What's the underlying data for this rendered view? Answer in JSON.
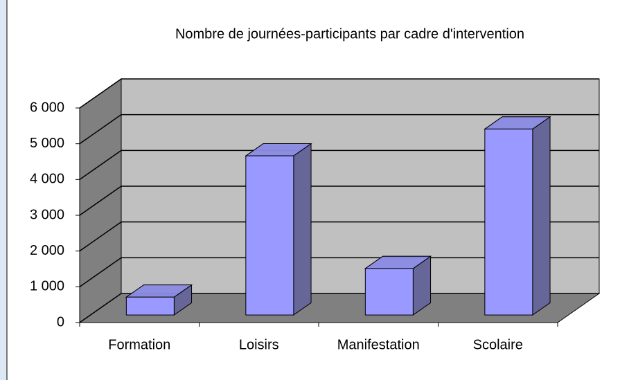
{
  "chart_data": {
    "type": "bar3d",
    "title": "Nombre de journées-participants par cadre d'intervention",
    "categories": [
      "Formation",
      "Loisirs",
      "Manifestation",
      "Scolaire"
    ],
    "values": [
      500,
      4450,
      1300,
      5200
    ],
    "color": "#9999ff",
    "side_color": "#666699",
    "ylim": [
      0,
      6000
    ],
    "yticks": [
      0,
      {
        "value": 1000,
        "label": "1 000"
      },
      {
        "value": 2000,
        "label": "2 000"
      },
      {
        "value": 3000,
        "label": "3 000"
      },
      {
        "value": 4000,
        "label": "4 000"
      },
      {
        "value": 5000,
        "label": "5 000"
      },
      {
        "value": 6000,
        "label": "6 000"
      }
    ],
    "grid": true
  }
}
